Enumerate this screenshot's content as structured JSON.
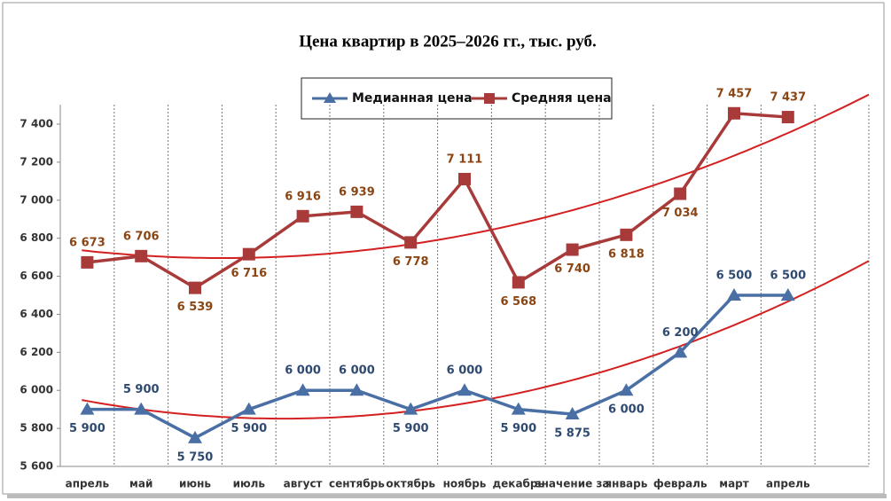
{
  "chart_data": {
    "type": "line",
    "title": "Цена квартир в 2025–2026 гг., тыс. руб.",
    "categories": [
      "апрель",
      "май",
      "июнь",
      "июль",
      "август",
      "сентябрь",
      "октябрь",
      "ноябрь",
      "декабрь",
      "значение за",
      "январь",
      "февраль",
      "март",
      "апрель",
      null
    ],
    "series": [
      {
        "name": "Медианная цена",
        "color": "#4a6fa5",
        "values": [
          5900,
          5900,
          5750,
          5900,
          6000,
          6000,
          5900,
          6000,
          5900,
          5875,
          6000,
          6200,
          6500,
          6500,
          null
        ],
        "value_labels": [
          "5 900",
          "5 900",
          "5 750",
          "5 900",
          "6 000",
          "6 000",
          "5 900",
          "6 000",
          "5 900",
          "5 875",
          "6 000",
          "6 200",
          "6 500",
          "6 500",
          null
        ]
      },
      {
        "name": "Средняя цена",
        "color": "#a83a3a",
        "values": [
          6673,
          6706,
          6539,
          6716,
          6916,
          6939,
          6778,
          7111,
          6568,
          6740,
          6818,
          7034,
          7457,
          7437,
          null
        ],
        "value_labels": [
          "6 673",
          "6 706",
          "6 539",
          "6 716",
          "6 916",
          "6 939",
          "6 778",
          "7 111",
          "6 568",
          "6 740",
          "6 818",
          "7 034",
          "7 457",
          "7 437",
          null
        ]
      }
    ],
    "ylim": [
      5600,
      7400
    ],
    "yticks": [
      {
        "value": 5600,
        "label": "5 600"
      },
      {
        "value": 5800,
        "label": "5 800"
      },
      {
        "value": 6000,
        "label": "6 000"
      },
      {
        "value": 6200,
        "label": "6 200"
      },
      {
        "value": 6400,
        "label": "6 400"
      },
      {
        "value": 6600,
        "label": "6 600"
      },
      {
        "value": 6800,
        "label": "6 800"
      },
      {
        "value": 7000,
        "label": "7 000"
      },
      {
        "value": 7200,
        "label": "7 200"
      },
      {
        "value": 7400,
        "label": "7 400"
      }
    ],
    "grid": true,
    "trendline": "polynomial",
    "trendline_color": "#d42020",
    "legend": "top"
  }
}
